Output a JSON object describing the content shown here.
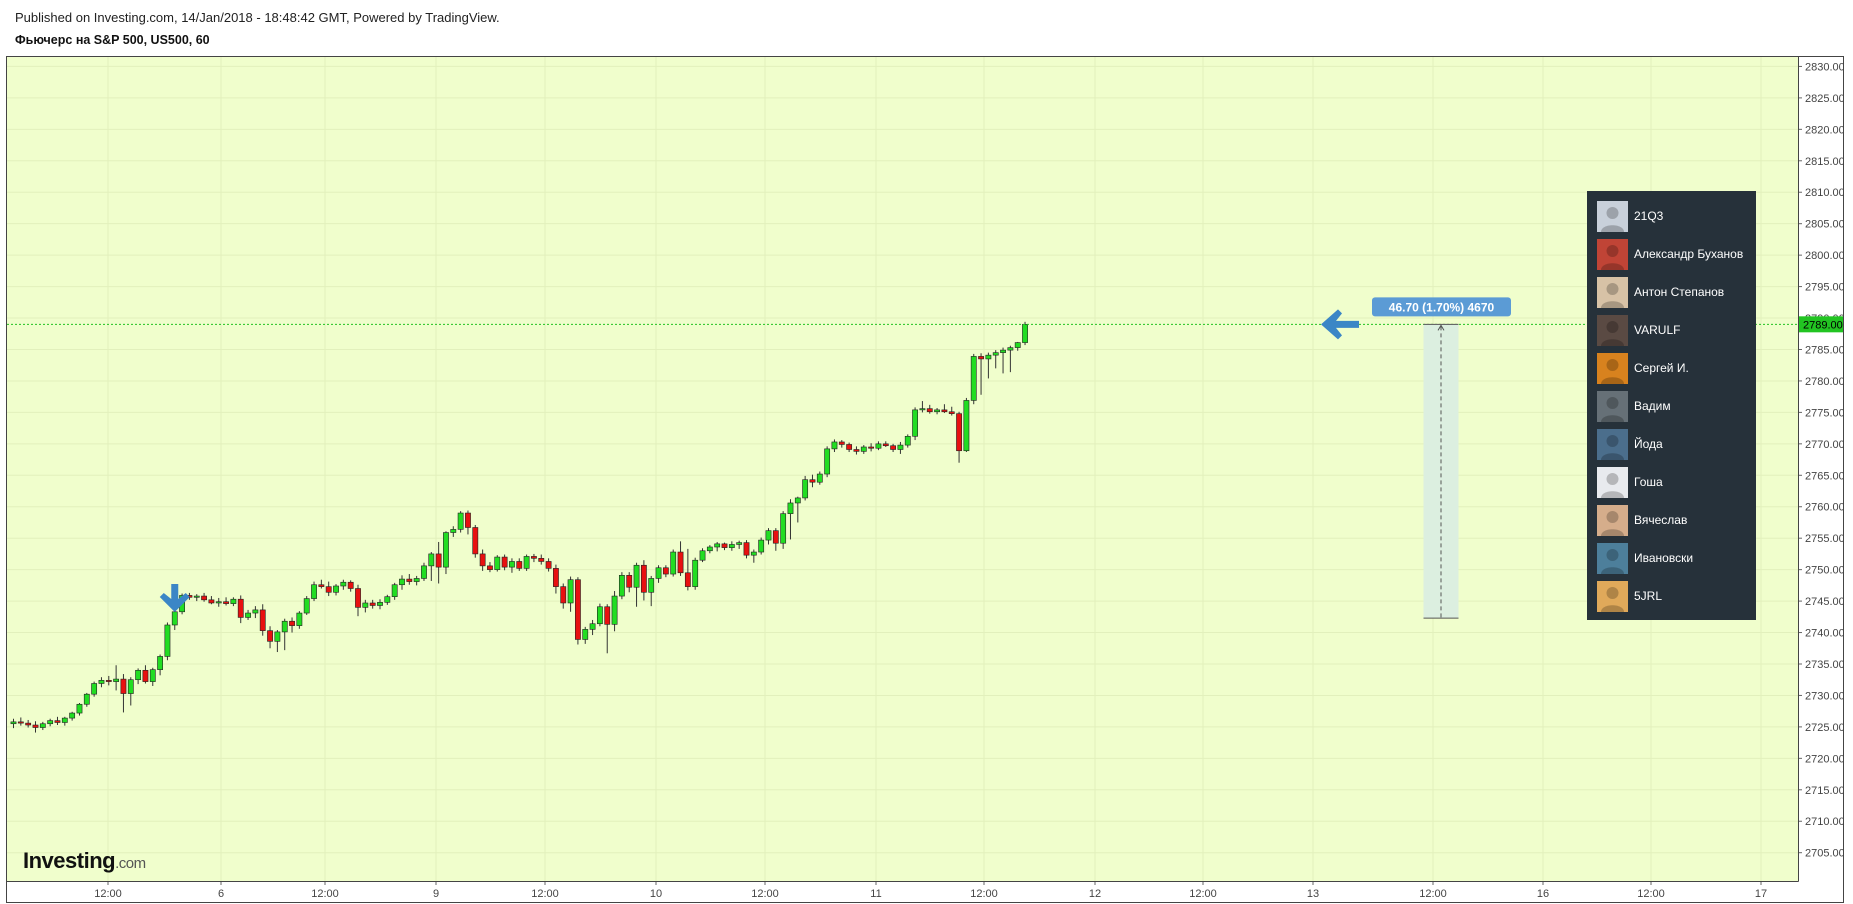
{
  "header": {
    "published": "Published on Investing.com, 14/Jan/2018 - 18:48:42 GMT, Powered by TradingView.",
    "title": "Фьючерс на S&P 500, US500, 60"
  },
  "logo": {
    "main": "Investing",
    "suffix": ".com"
  },
  "colors": {
    "background": "#f0fecc",
    "up": "#22dd22",
    "down": "#e81010",
    "last_price_line": "#22c422",
    "arrow": "#3b86c6",
    "measure_box": "#dcefe0",
    "measure_label": "#5b9bd5",
    "panel": "#26313a"
  },
  "chart_data": {
    "type": "candlestick",
    "title": "Фьючерс на S&P 500, US500, 60",
    "ylim": [
      2700.5,
      2831.5
    ],
    "y_ticks": [
      "2705.00",
      "2710.00",
      "2715.00",
      "2720.00",
      "2725.00",
      "2730.00",
      "2735.00",
      "2740.00",
      "2745.00",
      "2750.00",
      "2755.00",
      "2760.00",
      "2765.00",
      "2770.00",
      "2775.00",
      "2780.00",
      "2785.00",
      "2790.00",
      "2795.00",
      "2800.00",
      "2805.00",
      "2810.00",
      "2815.00",
      "2820.00",
      "2825.00",
      "2830.00"
    ],
    "x_ticks": [
      "12:00",
      "6",
      "12:00",
      "9",
      "12:00",
      "10",
      "12:00",
      "11",
      "12:00",
      "12",
      "12:00",
      "13",
      "12:00",
      "16",
      "12:00",
      "17"
    ],
    "last_price": "2789.00",
    "grid": true,
    "candles": [
      [
        2725.5,
        2726.3,
        2724.8,
        2725.8
      ],
      [
        2725.8,
        2726.5,
        2725.2,
        2725.6
      ],
      [
        2725.6,
        2726.1,
        2724.9,
        2725.3
      ],
      [
        2725.3,
        2725.9,
        2724.1,
        2724.9
      ],
      [
        2724.9,
        2725.8,
        2724.5,
        2725.5
      ],
      [
        2725.5,
        2726.3,
        2725.1,
        2726.0
      ],
      [
        2726.0,
        2726.6,
        2725.3,
        2725.7
      ],
      [
        2725.7,
        2726.6,
        2725.2,
        2726.4
      ],
      [
        2726.4,
        2727.4,
        2726.0,
        2727.2
      ],
      [
        2727.2,
        2728.8,
        2726.8,
        2728.6
      ],
      [
        2728.6,
        2730.4,
        2728.2,
        2730.2
      ],
      [
        2730.2,
        2732.2,
        2729.8,
        2731.9
      ],
      [
        2731.9,
        2732.9,
        2731.3,
        2732.4
      ],
      [
        2732.4,
        2733.1,
        2731.6,
        2732.2
      ],
      [
        2732.2,
        2734.8,
        2730.8,
        2732.6
      ],
      [
        2732.6,
        2733.4,
        2727.3,
        2730.3
      ],
      [
        2730.3,
        2732.9,
        2728.4,
        2732.5
      ],
      [
        2732.5,
        2734.3,
        2731.8,
        2734.0
      ],
      [
        2734.0,
        2734.8,
        2731.9,
        2732.2
      ],
      [
        2732.2,
        2734.4,
        2731.5,
        2734.1
      ],
      [
        2734.1,
        2736.5,
        2733.2,
        2736.2
      ],
      [
        2736.2,
        2741.6,
        2735.6,
        2741.2
      ],
      [
        2741.2,
        2743.6,
        2740.4,
        2743.3
      ],
      [
        2743.3,
        2746.2,
        2742.9,
        2745.9
      ],
      [
        2745.9,
        2746.3,
        2745.2,
        2745.6
      ],
      [
        2745.6,
        2746.1,
        2745.0,
        2745.8
      ],
      [
        2745.8,
        2746.3,
        2744.9,
        2745.2
      ],
      [
        2745.2,
        2745.8,
        2744.5,
        2744.7
      ],
      [
        2744.7,
        2745.5,
        2744.1,
        2744.9
      ],
      [
        2744.9,
        2745.6,
        2744.3,
        2744.6
      ],
      [
        2744.6,
        2745.6,
        2744.2,
        2745.3
      ],
      [
        2745.3,
        2745.9,
        2741.5,
        2742.4
      ],
      [
        2742.4,
        2743.6,
        2742.0,
        2743.1
      ],
      [
        2743.1,
        2744.2,
        2742.3,
        2743.6
      ],
      [
        2743.6,
        2744.5,
        2739.5,
        2740.3
      ],
      [
        2740.3,
        2741.0,
        2737.5,
        2738.6
      ],
      [
        2738.6,
        2740.4,
        2736.9,
        2740.1
      ],
      [
        2740.1,
        2742.2,
        2737.2,
        2741.8
      ],
      [
        2741.8,
        2742.4,
        2740.0,
        2741.1
      ],
      [
        2741.1,
        2743.4,
        2740.6,
        2743.1
      ],
      [
        2743.1,
        2745.8,
        2742.8,
        2745.4
      ],
      [
        2745.4,
        2748.1,
        2745.0,
        2747.6
      ],
      [
        2747.6,
        2748.4,
        2747.0,
        2747.3
      ],
      [
        2747.3,
        2748.1,
        2745.8,
        2746.4
      ],
      [
        2746.4,
        2747.7,
        2745.9,
        2747.4
      ],
      [
        2747.4,
        2748.4,
        2746.8,
        2748.0
      ],
      [
        2748.0,
        2748.3,
        2746.5,
        2747.0
      ],
      [
        2747.0,
        2747.6,
        2742.6,
        2744.0
      ],
      [
        2744.0,
        2745.2,
        2743.2,
        2744.7
      ],
      [
        2744.7,
        2745.2,
        2743.8,
        2744.3
      ],
      [
        2744.3,
        2745.3,
        2743.7,
        2744.8
      ],
      [
        2744.8,
        2746.0,
        2744.4,
        2745.7
      ],
      [
        2745.7,
        2747.9,
        2745.2,
        2747.6
      ],
      [
        2747.6,
        2749.1,
        2746.8,
        2748.5
      ],
      [
        2748.5,
        2749.3,
        2747.6,
        2748.1
      ],
      [
        2748.1,
        2749.0,
        2747.5,
        2748.6
      ],
      [
        2748.6,
        2751.1,
        2748.2,
        2750.6
      ],
      [
        2750.6,
        2752.8,
        2748.2,
        2752.5
      ],
      [
        2752.5,
        2754.4,
        2747.8,
        2750.4
      ],
      [
        2750.4,
        2756.1,
        2749.3,
        2755.9
      ],
      [
        2755.9,
        2756.9,
        2755.2,
        2756.4
      ],
      [
        2756.4,
        2759.3,
        2755.9,
        2759.0
      ],
      [
        2759.0,
        2759.4,
        2755.6,
        2756.7
      ],
      [
        2756.7,
        2757.1,
        2751.9,
        2752.5
      ],
      [
        2752.5,
        2753.2,
        2749.8,
        2750.6
      ],
      [
        2750.6,
        2751.2,
        2749.6,
        2750.0
      ],
      [
        2750.0,
        2752.3,
        2749.7,
        2752.0
      ],
      [
        2752.0,
        2752.4,
        2749.9,
        2750.4
      ],
      [
        2750.4,
        2751.8,
        2749.5,
        2751.3
      ],
      [
        2751.3,
        2751.8,
        2749.8,
        2750.2
      ],
      [
        2750.2,
        2752.4,
        2749.8,
        2752.1
      ],
      [
        2752.1,
        2752.5,
        2751.2,
        2751.8
      ],
      [
        2751.8,
        2752.4,
        2750.8,
        2751.3
      ],
      [
        2751.3,
        2751.8,
        2749.7,
        2750.2
      ],
      [
        2750.2,
        2750.8,
        2746.2,
        2747.3
      ],
      [
        2747.3,
        2747.8,
        2743.8,
        2744.7
      ],
      [
        2744.7,
        2748.9,
        2743.3,
        2748.4
      ],
      [
        2748.4,
        2748.8,
        2738.1,
        2738.9
      ],
      [
        2738.9,
        2740.9,
        2738.2,
        2740.5
      ],
      [
        2740.5,
        2742.0,
        2739.6,
        2741.4
      ],
      [
        2741.4,
        2744.6,
        2741.0,
        2744.1
      ],
      [
        2744.1,
        2744.5,
        2736.7,
        2741.3
      ],
      [
        2741.3,
        2746.6,
        2740.2,
        2745.8
      ],
      [
        2745.8,
        2749.6,
        2745.3,
        2749.1
      ],
      [
        2749.1,
        2749.6,
        2746.4,
        2747.2
      ],
      [
        2747.2,
        2751.1,
        2744.1,
        2750.7
      ],
      [
        2750.7,
        2751.5,
        2745.1,
        2746.4
      ],
      [
        2746.4,
        2749.0,
        2744.2,
        2748.6
      ],
      [
        2748.6,
        2750.7,
        2747.9,
        2750.3
      ],
      [
        2750.3,
        2750.7,
        2748.8,
        2749.3
      ],
      [
        2749.3,
        2753.2,
        2748.9,
        2752.8
      ],
      [
        2752.8,
        2754.5,
        2749.0,
        2749.5
      ],
      [
        2749.5,
        2753.3,
        2746.7,
        2747.3
      ],
      [
        2747.3,
        2751.9,
        2746.8,
        2751.5
      ],
      [
        2751.5,
        2753.4,
        2751.2,
        2753.0
      ],
      [
        2753.0,
        2753.9,
        2752.6,
        2753.6
      ],
      [
        2753.6,
        2754.4,
        2752.9,
        2754.1
      ],
      [
        2754.1,
        2754.3,
        2753.1,
        2753.5
      ],
      [
        2753.5,
        2754.5,
        2753.0,
        2754.0
      ],
      [
        2754.0,
        2754.6,
        2753.3,
        2754.3
      ],
      [
        2754.3,
        2754.7,
        2751.8,
        2752.3
      ],
      [
        2752.3,
        2753.2,
        2751.1,
        2752.8
      ],
      [
        2752.8,
        2755.1,
        2752.4,
        2754.7
      ],
      [
        2754.7,
        2756.6,
        2754.0,
        2756.2
      ],
      [
        2756.2,
        2756.6,
        2753.0,
        2754.2
      ],
      [
        2754.2,
        2759.3,
        2753.3,
        2758.9
      ],
      [
        2758.9,
        2761.2,
        2754.8,
        2760.6
      ],
      [
        2760.6,
        2761.6,
        2757.5,
        2761.4
      ],
      [
        2761.4,
        2764.9,
        2761.0,
        2764.3
      ],
      [
        2764.3,
        2765.1,
        2763.1,
        2763.9
      ],
      [
        2763.9,
        2765.6,
        2763.5,
        2765.2
      ],
      [
        2765.2,
        2769.6,
        2764.7,
        2769.2
      ],
      [
        2769.2,
        2770.7,
        2768.7,
        2770.3
      ],
      [
        2770.3,
        2770.6,
        2769.4,
        2769.9
      ],
      [
        2769.9,
        2770.2,
        2768.7,
        2769.1
      ],
      [
        2769.1,
        2769.6,
        2768.3,
        2768.8
      ],
      [
        2768.8,
        2769.8,
        2768.4,
        2769.5
      ],
      [
        2769.5,
        2770.1,
        2768.8,
        2769.3
      ],
      [
        2769.3,
        2770.4,
        2769.0,
        2770.0
      ],
      [
        2770.0,
        2770.4,
        2769.5,
        2769.7
      ],
      [
        2769.7,
        2770.0,
        2768.7,
        2769.1
      ],
      [
        2769.1,
        2770.3,
        2768.4,
        2769.8
      ],
      [
        2769.8,
        2771.5,
        2769.4,
        2771.2
      ],
      [
        2771.2,
        2775.8,
        2770.6,
        2775.4
      ],
      [
        2775.4,
        2776.8,
        2775.0,
        2775.6
      ],
      [
        2775.6,
        2776.2,
        2774.8,
        2775.1
      ],
      [
        2775.1,
        2775.7,
        2774.7,
        2775.4
      ],
      [
        2775.4,
        2776.3,
        2774.9,
        2775.1
      ],
      [
        2775.1,
        2775.9,
        2774.5,
        2774.8
      ],
      [
        2774.8,
        2775.1,
        2767.0,
        2768.9
      ],
      [
        2768.9,
        2777.3,
        2768.7,
        2776.9
      ],
      [
        2776.9,
        2784.3,
        2776.3,
        2783.9
      ],
      [
        2783.9,
        2784.4,
        2777.8,
        2783.5
      ],
      [
        2783.5,
        2784.5,
        2780.4,
        2784.1
      ],
      [
        2784.1,
        2784.9,
        2782.0,
        2784.5
      ],
      [
        2784.5,
        2785.3,
        2781.2,
        2784.9
      ],
      [
        2784.9,
        2785.6,
        2781.4,
        2785.3
      ],
      [
        2785.3,
        2786.2,
        2784.8,
        2786.1
      ],
      [
        2786.1,
        2789.4,
        2785.7,
        2789.0
      ]
    ]
  },
  "annotations": {
    "measure_label": "46.70 (1.70%) 4670",
    "measure_from": 2742.3,
    "measure_to": 2789.0,
    "arrow_down_at_candle": 22,
    "arrow_left_price": 2789.0
  },
  "participants": [
    {
      "name": "21Q3",
      "icon": "avatar-silhouette",
      "color": "#c8d0da"
    },
    {
      "name": "Александр Буханов",
      "icon": "avatar-poster",
      "color": "#c04436"
    },
    {
      "name": "Антон Степанов",
      "icon": "avatar-photo",
      "color": "#d7c2a6"
    },
    {
      "name": "VARULF",
      "icon": "avatar-photo",
      "color": "#5a4a43"
    },
    {
      "name": "Сергей И.",
      "icon": "avatar-fire",
      "color": "#d8821e"
    },
    {
      "name": "Вадим",
      "icon": "avatar-cat",
      "color": "#667077"
    },
    {
      "name": "Йода",
      "icon": "avatar-photo",
      "color": "#4b6e8c"
    },
    {
      "name": "Гоша",
      "icon": "avatar-document",
      "color": "#e8eaee"
    },
    {
      "name": "Вячеслав",
      "icon": "avatar-face",
      "color": "#d5ad8b"
    },
    {
      "name": "Ивановски",
      "icon": "avatar-landscape",
      "color": "#4d7f9b"
    },
    {
      "name": "5JRL",
      "icon": "avatar-cartoon",
      "color": "#e0a95a"
    }
  ]
}
